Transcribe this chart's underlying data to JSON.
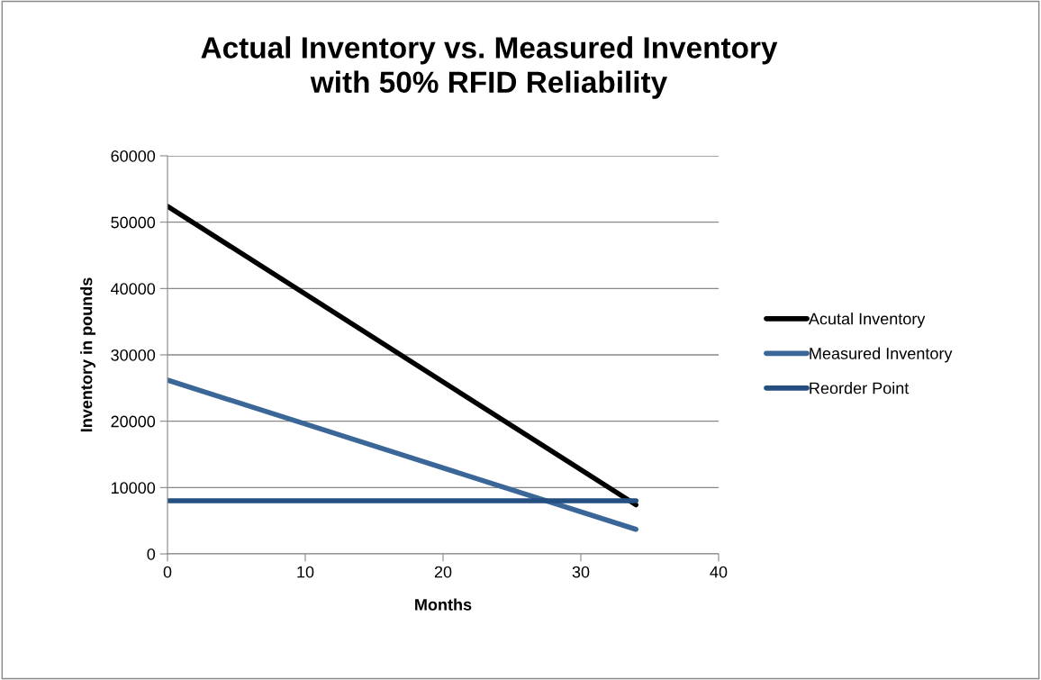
{
  "chart_data": {
    "type": "line",
    "title": "Actual Inventory vs. Measured Inventory\nwith 50% RFID Reliability",
    "xlabel": "Months",
    "ylabel": "Inventory in pounds",
    "x": [
      0,
      34
    ],
    "series": [
      {
        "name": "Acutal Inventory",
        "color": "#000000",
        "values": [
          52400,
          7400
        ]
      },
      {
        "name": "Measured Inventory",
        "color": "#3a6698",
        "values": [
          26200,
          3700
        ]
      },
      {
        "name": "Reorder Point",
        "color": "#254f80",
        "values": [
          8000,
          8000
        ]
      }
    ],
    "xlim": [
      0,
      40
    ],
    "xticks": [
      0,
      10,
      20,
      30,
      40
    ],
    "ylim": [
      0,
      60000
    ],
    "yticks": [
      0,
      10000,
      20000,
      30000,
      40000,
      50000,
      60000
    ],
    "grid": "y",
    "legend": "right",
    "marker": "none",
    "line_style": "solid"
  }
}
